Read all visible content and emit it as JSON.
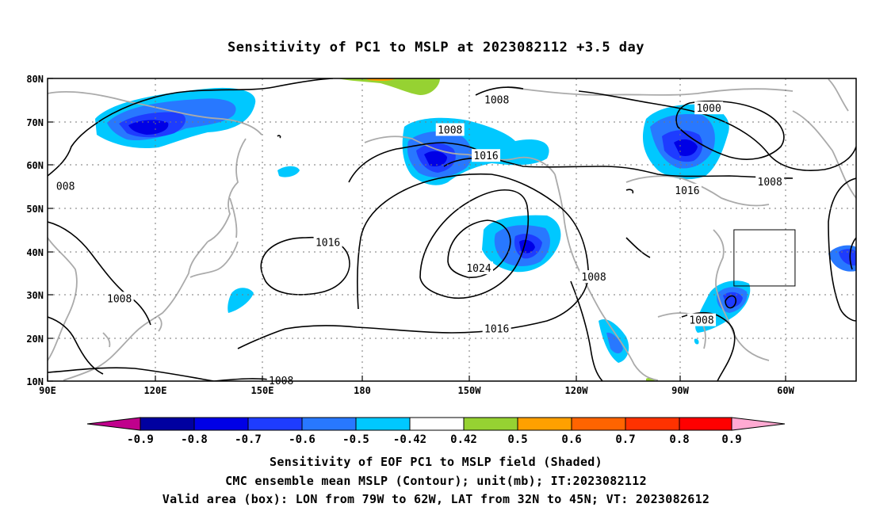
{
  "title": "Sensitivity of PC1 to MSLP at 2023082112 +3.5 day",
  "map": {
    "lat_ticks": [
      "80N",
      "70N",
      "60N",
      "50N",
      "40N",
      "30N",
      "20N",
      "10N"
    ],
    "lon_ticks": [
      "90E",
      "120E",
      "150E",
      "180",
      "150W",
      "120W",
      "90W",
      "60W"
    ],
    "isobars": [
      {
        "label": "1008",
        "lon": -145,
        "lat": 75
      },
      {
        "label": "1000",
        "lon": -86,
        "lat": 73
      },
      {
        "label": "1008",
        "lon": -158,
        "lat": 68
      },
      {
        "label": "1016",
        "lon": -148,
        "lat": 62
      },
      {
        "label": "008",
        "lon": 95,
        "lat": 55
      },
      {
        "label": "1016",
        "lon": -92,
        "lat": 54
      },
      {
        "label": "1008",
        "lon": -69,
        "lat": 56
      },
      {
        "label": "1016",
        "lon": 168,
        "lat": 42
      },
      {
        "label": "1024",
        "lon": -150,
        "lat": 36
      },
      {
        "label": "1008",
        "lon": -118,
        "lat": 34
      },
      {
        "label": "1008",
        "lon": 110,
        "lat": 29
      },
      {
        "label": "1016",
        "lon": -145,
        "lat": 22
      },
      {
        "label": "1008",
        "lon": -88,
        "lat": 24
      },
      {
        "label": "1008",
        "lon": 155,
        "lat": 10
      }
    ],
    "valid_box": {
      "lon_min": -79,
      "lon_max": -62,
      "lat_min": 32,
      "lat_max": 45
    }
  },
  "colorbar": {
    "labels": [
      "-0.9",
      "-0.8",
      "-0.7",
      "-0.6",
      "-0.5",
      "-0.42",
      "0.42",
      "0.5",
      "0.6",
      "0.7",
      "0.8",
      "0.9"
    ],
    "colors": [
      "#c0008c",
      "#0000a0",
      "#0000e6",
      "#1e3cff",
      "#2878ff",
      "#00c8ff",
      "#ffffff",
      "#96d232",
      "#ffa000",
      "#ff6400",
      "#ff3200",
      "#ff0000",
      "#ffaad2"
    ]
  },
  "captions": {
    "line1": "Sensitivity of EOF PC1 to MSLP field (Shaded)",
    "line2": "CMC ensemble mean MSLP (Contour); unit(mb); IT:2023082112",
    "line3": "Valid area (box): LON from 79W to 62W, LAT from 32N to 45N; VT: 2023082612"
  }
}
